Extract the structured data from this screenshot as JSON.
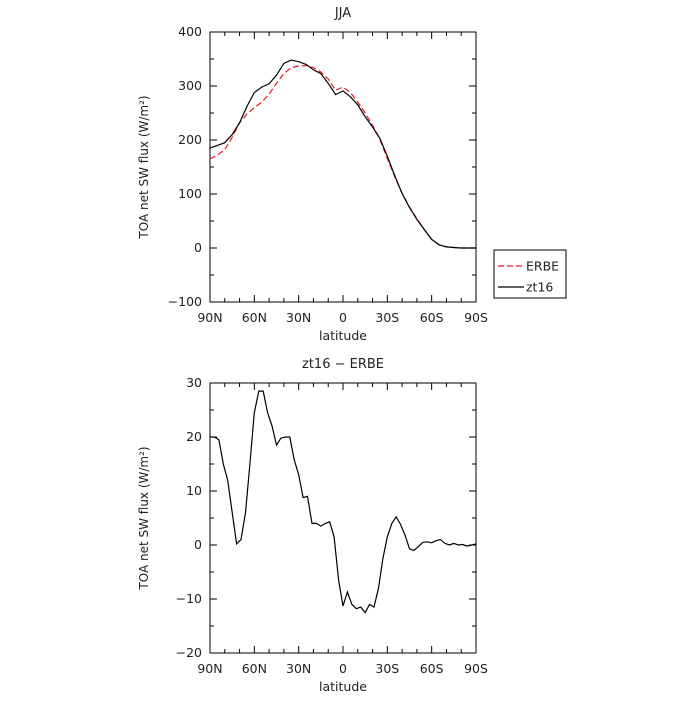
{
  "chart_data": [
    {
      "type": "line",
      "title": "JJA",
      "xlabel": "latitude",
      "ylabel": "TOA net SW flux (W/m²)",
      "xlim": [
        -90,
        90
      ],
      "ylim": [
        -100,
        400
      ],
      "xtick_values": [
        -90,
        -60,
        -30,
        0,
        30,
        60,
        90
      ],
      "xtick_labels": [
        "90N",
        "60N",
        "30N",
        "0",
        "30S",
        "60S",
        "90S"
      ],
      "ytick_values": [
        -100,
        0,
        100,
        200,
        300,
        400
      ],
      "ytick_labels": [
        "−100",
        "0",
        "100",
        "200",
        "300",
        "400"
      ],
      "legend_position": "right",
      "series": [
        {
          "name": "ERBE",
          "color": "#e41a1c",
          "dashed": true,
          "x": [
            -90,
            -85,
            -80,
            -75,
            -70,
            -65,
            -60,
            -55,
            -50,
            -45,
            -40,
            -35,
            -30,
            -25,
            -20,
            -15,
            -10,
            -5,
            0,
            5,
            10,
            15,
            20,
            25,
            30,
            35,
            40,
            45,
            50,
            55,
            60,
            65,
            70,
            75,
            80,
            85,
            90
          ],
          "y": [
            165,
            172,
            182,
            205,
            232,
            248,
            260,
            270,
            285,
            305,
            323,
            334,
            337,
            338,
            334,
            326,
            313,
            292,
            298,
            288,
            270,
            250,
            227,
            201,
            166,
            132,
            101,
            76,
            54,
            34,
            16,
            6,
            2,
            1,
            0,
            0,
            0
          ]
        },
        {
          "name": "zt16",
          "color": "#000000",
          "dashed": false,
          "x": [
            -90,
            -85,
            -80,
            -75,
            -70,
            -65,
            -60,
            -55,
            -50,
            -45,
            -40,
            -35,
            -30,
            -25,
            -20,
            -15,
            -10,
            -5,
            0,
            5,
            10,
            15,
            20,
            25,
            30,
            35,
            40,
            45,
            50,
            55,
            60,
            65,
            70,
            75,
            80,
            85,
            90
          ],
          "y": [
            185,
            190,
            195,
            210,
            232,
            262,
            288,
            298,
            304,
            320,
            342,
            348,
            345,
            340,
            330,
            323,
            305,
            284,
            291,
            280,
            265,
            243,
            224,
            203,
            170,
            134,
            101,
            75,
            53,
            34,
            16,
            6,
            2,
            1,
            0,
            0,
            0
          ]
        }
      ]
    },
    {
      "type": "line",
      "title": "zt16 − ERBE",
      "xlabel": "latitude",
      "ylabel": "TOA net SW flux (W/m²)",
      "xlim": [
        -90,
        90
      ],
      "ylim": [
        -20,
        30
      ],
      "xtick_values": [
        -90,
        -60,
        -30,
        0,
        30,
        60,
        90
      ],
      "xtick_labels": [
        "90N",
        "60N",
        "30N",
        "0",
        "30S",
        "60S",
        "90S"
      ],
      "ytick_values": [
        -20,
        -10,
        0,
        10,
        20,
        30
      ],
      "ytick_labels": [
        "−20",
        "−10",
        "0",
        "10",
        "20",
        "30"
      ],
      "series": [
        {
          "color": "#000000",
          "dashed": false,
          "x": [
            -90,
            -87,
            -84,
            -81,
            -78,
            -75,
            -72,
            -69,
            -66,
            -63,
            -60,
            -57,
            -54,
            -51,
            -48,
            -45,
            -42,
            -39,
            -36,
            -33,
            -30,
            -27,
            -24,
            -21,
            -18,
            -15,
            -12,
            -9,
            -6,
            -3,
            0,
            3,
            6,
            9,
            12,
            15,
            18,
            21,
            24,
            27,
            30,
            33,
            36,
            39,
            42,
            45,
            48,
            51,
            54,
            57,
            60,
            63,
            66,
            69,
            72,
            75,
            78,
            81,
            84,
            87,
            90
          ],
          "y": [
            20,
            20,
            19.5,
            15,
            12,
            6,
            0.2,
            1,
            6,
            15,
            24.5,
            28.5,
            28.5,
            24.5,
            22,
            18.5,
            19.8,
            20,
            20,
            15.8,
            13,
            8.8,
            9,
            4,
            4,
            3.5,
            4,
            4.3,
            1.5,
            -6.5,
            -11.3,
            -8.7,
            -11,
            -11.8,
            -11.5,
            -12.5,
            -11,
            -11.5,
            -8,
            -2.5,
            1.5,
            4,
            5.2,
            3.8,
            1.8,
            -0.7,
            -1,
            -0.3,
            0.5,
            0.6,
            0.4,
            0.8,
            1,
            0.3,
            0,
            0.3,
            0,
            0.1,
            -0.2,
            0,
            0.2
          ]
        }
      ]
    }
  ]
}
